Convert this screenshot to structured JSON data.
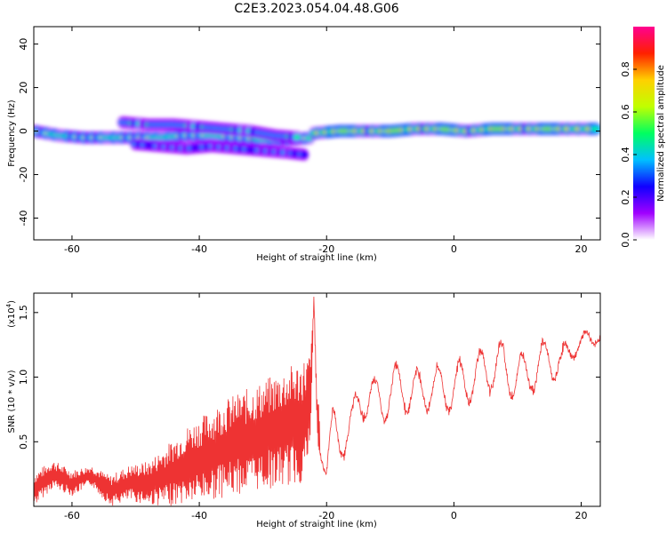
{
  "title": "C2E3.2023.054.04.48.G06",
  "chart_data": [
    {
      "type": "heatmap",
      "xlabel": "Height of straight line (km)",
      "ylabel": "Frequency (Hz)",
      "xlim": [
        -66,
        23
      ],
      "ylim": [
        -50,
        48
      ],
      "xticks": [
        -60,
        -40,
        -20,
        0,
        20
      ],
      "yticks": [
        -40,
        -20,
        0,
        20,
        40
      ],
      "colorbar": {
        "label": "Normalized spectral amplitude",
        "range": [
          0,
          1
        ],
        "ticks": [
          "0.0",
          "0.2",
          "0.4",
          "0.6",
          "0.8"
        ],
        "colors": [
          "#ffffff",
          "#a000ff",
          "#1000ff",
          "#00c0ff",
          "#00ff60",
          "#c0ff00",
          "#ffd000",
          "#ff2000",
          "#ff0090"
        ]
      },
      "bands": [
        {
          "x": [
            -66,
            -62,
            -58,
            -54,
            -50,
            -46,
            -42,
            -38,
            -34,
            -30,
            -26,
            -22
          ],
          "y": [
            0,
            -2,
            -3,
            -3,
            -3,
            -3,
            -2,
            -2,
            -3,
            -4,
            -4,
            -3
          ],
          "amplitude": 0.6
        },
        {
          "x": [
            -52,
            -48,
            -44,
            -40,
            -36,
            -32,
            -28,
            -24
          ],
          "y": [
            4,
            3,
            3,
            2,
            1,
            0,
            -2,
            -3
          ],
          "amplitude": 0.45
        },
        {
          "x": [
            -50,
            -46,
            -42,
            -38,
            -34,
            -30,
            -26,
            -23
          ],
          "y": [
            -6,
            -7,
            -8,
            -7,
            -8,
            -9,
            -10,
            -11
          ],
          "amplitude": 0.35
        },
        {
          "x": [
            -22,
            -18,
            -14,
            -10,
            -6,
            -2,
            2,
            6,
            10,
            14,
            18,
            23
          ],
          "y": [
            -1,
            0,
            0,
            0,
            1,
            1,
            0,
            1,
            1,
            1,
            1,
            1
          ],
          "amplitude": 0.75
        }
      ]
    },
    {
      "type": "line",
      "xlabel": "Height of straight line (km)",
      "ylabel": "SNR (10 * v/v)",
      "multiplier_label": "(x10",
      "multiplier_exp": "4",
      "xlim": [
        -66,
        23
      ],
      "ylim": [
        0,
        16500
      ],
      "xticks": [
        -60,
        -40,
        -20,
        0,
        20
      ],
      "ytick_labels": [
        "0.5",
        "1.0",
        "1.5"
      ],
      "ytick_values": [
        5000,
        10000,
        15000
      ],
      "color": "#ee3333",
      "x": [
        -66,
        -63,
        -60,
        -57,
        -54,
        -51,
        -48,
        -45,
        -42,
        -39,
        -36,
        -33,
        -30,
        -27,
        -24,
        -22.5,
        -22,
        -21.5,
        -20,
        -19,
        -18,
        -17,
        -16,
        -15,
        -13,
        -11,
        -9,
        -7,
        -5,
        -3,
        -1,
        1,
        3,
        5,
        7,
        9,
        11,
        13,
        15,
        17,
        19,
        21,
        23
      ],
      "y": [
        1300,
        2500,
        1800,
        2400,
        1200,
        1800,
        1800,
        2400,
        3200,
        3800,
        4500,
        5000,
        5500,
        6000,
        6500,
        8000,
        16300,
        7000,
        3000,
        6000,
        5000,
        5500,
        6500,
        8000,
        8600,
        8000,
        9500,
        8800,
        9000,
        9200,
        9000,
        9400,
        10000,
        10500,
        11000,
        10200,
        10000,
        10800,
        11500,
        11000,
        12500,
        12800,
        13200
      ],
      "amplitude": [
        1300,
        1100,
        1000,
        800,
        1200,
        1400,
        1700,
        2400,
        3000,
        3400,
        3800,
        4000,
        4200,
        4600,
        4800,
        4000,
        0,
        2000,
        1500,
        2000,
        1800,
        1600,
        1500,
        1600,
        1800,
        1700,
        1800,
        2000,
        1900,
        1900,
        2000,
        2100,
        2100,
        2000,
        2100,
        2100,
        2000,
        1900,
        1800,
        1600,
        1000,
        800,
        500
      ]
    }
  ]
}
